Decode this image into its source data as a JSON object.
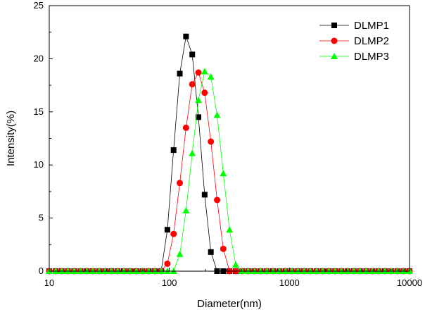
{
  "chart_data": {
    "type": "scatter",
    "title": "",
    "xlabel": "Diameter(nm)",
    "ylabel": "Intensity(%)",
    "x_scale": "log",
    "xlim": [
      10,
      10000
    ],
    "ylim": [
      0,
      25
    ],
    "x_ticks": [
      10,
      100,
      1000,
      10000
    ],
    "x_tick_labels": [
      "10",
      "100",
      "1000",
      "10000"
    ],
    "y_ticks": [
      0,
      5,
      10,
      15,
      20,
      25
    ],
    "y_tick_labels": [
      "0",
      "5",
      "10",
      "15",
      "20",
      "25"
    ],
    "grid": false,
    "legend_position": "top-right",
    "series": [
      {
        "name": "DLMP1",
        "color": "#000000",
        "marker": "square",
        "x": [
          10,
          11.3,
          12.7,
          14.3,
          16.1,
          18.2,
          20.5,
          23,
          26,
          29.2,
          32.9,
          37.1,
          41.8,
          47.1,
          53.1,
          59.8,
          67.4,
          75.9,
          85.5,
          96.3,
          108.5,
          122.2,
          137.7,
          155.1,
          174.7,
          196.8,
          221.7,
          249.8,
          281.4,
          317,
          357.1,
          402.3,
          453.2,
          510.6,
          575.2,
          648,
          730,
          822.4,
          926.4,
          1043.6,
          1175.7,
          1324.5,
          1492.1,
          1680.9,
          1893.6,
          2133.2,
          2403.2,
          2707.3,
          3049.9,
          3435.8,
          3870.6,
          4360.5,
          4912.3,
          5533.9,
          6234.2,
          7023.1,
          7911.8,
          8913,
          10000
        ],
        "y": [
          0,
          0,
          0,
          0,
          0,
          0,
          0,
          0,
          0,
          0,
          0,
          0,
          0,
          0,
          0,
          0,
          0,
          0,
          0,
          3.9,
          11.4,
          18.6,
          22.1,
          20.4,
          14.5,
          7.2,
          1.8,
          0,
          0,
          0,
          0,
          0,
          0,
          0,
          0,
          0,
          0,
          0,
          0,
          0,
          0,
          0,
          0,
          0,
          0,
          0,
          0,
          0,
          0,
          0,
          0,
          0,
          0,
          0,
          0,
          0,
          0,
          0,
          0
        ]
      },
      {
        "name": "DLMP2",
        "color": "#ff0000",
        "marker": "circle",
        "x": [
          10,
          11.3,
          12.7,
          14.3,
          16.1,
          18.2,
          20.5,
          23,
          26,
          29.2,
          32.9,
          37.1,
          41.8,
          47.1,
          53.1,
          59.8,
          67.4,
          75.9,
          85.5,
          96.3,
          108.5,
          122.2,
          137.7,
          155.1,
          174.7,
          196.8,
          221.7,
          249.8,
          281.4,
          317,
          357.1,
          402.3,
          453.2,
          510.6,
          575.2,
          648,
          730,
          822.4,
          926.4,
          1043.6,
          1175.7,
          1324.5,
          1492.1,
          1680.9,
          1893.6,
          2133.2,
          2403.2,
          2707.3,
          3049.9,
          3435.8,
          3870.6,
          4360.5,
          4912.3,
          5533.9,
          6234.2,
          7023.1,
          7911.8,
          8913,
          10000
        ],
        "y": [
          0,
          0,
          0,
          0,
          0,
          0,
          0,
          0,
          0,
          0,
          0,
          0,
          0,
          0,
          0,
          0,
          0,
          0,
          0,
          0.7,
          3.5,
          8.3,
          13.5,
          17.6,
          18.7,
          16.8,
          12.2,
          6.7,
          2.1,
          0,
          0,
          0,
          0,
          0,
          0,
          0,
          0,
          0,
          0,
          0,
          0,
          0,
          0,
          0,
          0,
          0,
          0,
          0,
          0,
          0,
          0,
          0,
          0,
          0,
          0,
          0,
          0,
          0,
          0
        ]
      },
      {
        "name": "DLMP3",
        "color": "#00ff00",
        "marker": "triangle",
        "x": [
          10,
          11.3,
          12.7,
          14.3,
          16.1,
          18.2,
          20.5,
          23,
          26,
          29.2,
          32.9,
          37.1,
          41.8,
          47.1,
          53.1,
          59.8,
          67.4,
          75.9,
          85.5,
          96.3,
          108.5,
          122.2,
          137.7,
          155.1,
          174.7,
          196.8,
          221.7,
          249.8,
          281.4,
          317,
          357.1,
          402.3,
          453.2,
          510.6,
          575.2,
          648,
          730,
          822.4,
          926.4,
          1043.6,
          1175.7,
          1324.5,
          1492.1,
          1680.9,
          1893.6,
          2133.2,
          2403.2,
          2707.3,
          3049.9,
          3435.8,
          3870.6,
          4360.5,
          4912.3,
          5533.9,
          6234.2,
          7023.1,
          7911.8,
          8913,
          10000
        ],
        "y": [
          0,
          0,
          0,
          0,
          0,
          0,
          0,
          0,
          0,
          0,
          0,
          0,
          0,
          0,
          0,
          0,
          0,
          0,
          0,
          0,
          0,
          1.6,
          5.7,
          11.1,
          16.1,
          18.8,
          18.3,
          14.7,
          9.2,
          3.9,
          0.6,
          0,
          0,
          0,
          0,
          0,
          0,
          0,
          0,
          0,
          0,
          0,
          0,
          0,
          0,
          0,
          0,
          0,
          0,
          0,
          0,
          0,
          0,
          0,
          0,
          0,
          0,
          0,
          0
        ]
      }
    ]
  }
}
